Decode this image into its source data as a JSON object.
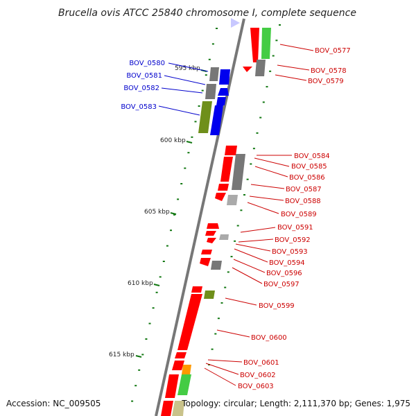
{
  "title": "Brucella ovis ATCC 25840 chromosome I, complete sequence",
  "footer": {
    "accession": "Accession: NC_009505",
    "summary": "Topology: circular; Length: 2,111,370 bp; Genes: 1,975"
  },
  "colors": {
    "red": "#ff0000",
    "green": "#44cc44",
    "olive": "#6f8f1a",
    "gray": "#777777",
    "blue": "#0000ee",
    "orange": "#ff9900",
    "label_red": "#cc0000",
    "label_blue": "#0000cc",
    "tick_green": "#117711"
  },
  "scale_labels": [
    "595 kbp",
    "600 kbp",
    "605 kbp",
    "610 kbp",
    "615 kbp"
  ],
  "genes_left": [
    "BOV_0580",
    "BOV_0581",
    "BOV_0582",
    "BOV_0583"
  ],
  "genes_right": [
    "BOV_0577",
    "BOV_0578",
    "BOV_0579",
    "BOV_0584",
    "BOV_0585",
    "BOV_0586",
    "BOV_0587",
    "BOV_0588",
    "BOV_0589",
    "BOV_0591",
    "BOV_0592",
    "BOV_0593",
    "BOV_0594",
    "BOV_0596",
    "BOV_0597",
    "BOV_0599",
    "BOV_0600",
    "BOV_0601",
    "BOV_0602",
    "BOV_0603"
  ]
}
